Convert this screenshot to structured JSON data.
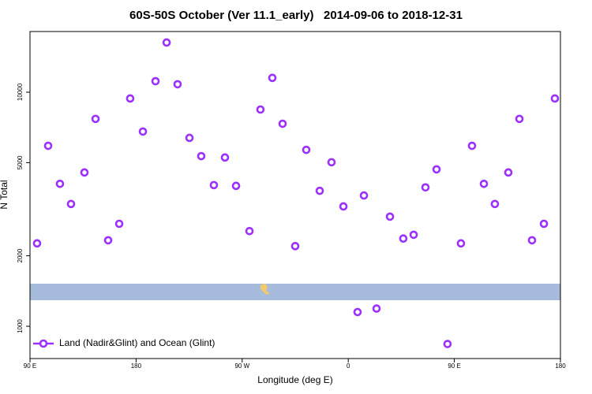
{
  "chart_data": {
    "type": "scatter",
    "title": "60S-50S October (Ver 11.1_early)   2014-09-06 to 2018-12-31",
    "x_label": "Longitude (deg E)",
    "y_label": "N Total",
    "log_y": true,
    "color": "#9b30ff",
    "legend": "bottom-left",
    "series": [
      {
        "name": "Land (Nadir&Glint) and Ocean (Glint)",
        "color": "#9b30ff",
        "x": [
          96.0,
          105.4,
          115.4,
          124.8,
          136.2,
          145.6,
          156.3,
          165.7,
          175.0,
          185.8,
          196.5,
          205.9,
          215.2,
          225.3,
          235.3,
          246.0,
          255.4,
          264.8,
          276.2,
          285.5,
          295.6,
          304.3,
          315.0,
          324.4,
          335.8,
          345.8,
          355.9,
          367.9,
          373.3,
          384.0,
          395.4,
          406.7,
          415.5,
          425.5,
          434.9,
          444.2,
          455.6,
          465.0,
          475.1,
          484.4,
          495.8,
          505.2,
          515.9,
          526.0,
          535.3
        ],
        "values": [
          2260,
          5900,
          4060,
          3330,
          4540,
          7690,
          2330,
          2740,
          9400,
          6790,
          11140,
          16300,
          10810,
          6380,
          5330,
          4010,
          5260,
          3980,
          2550,
          8430,
          11510,
          7330,
          2200,
          5670,
          3790,
          5020,
          3250,
          1150,
          3620,
          1190,
          2940,
          2370,
          2460,
          3920,
          4680,
          840,
          2260,
          5900,
          4060,
          3330,
          4540,
          7690,
          2330,
          2740,
          9400
        ]
      }
    ],
    "xlim": [
      90,
      540
    ],
    "xticks": [
      {
        "value": 90,
        "label": "90 E"
      },
      180,
      {
        "value": 270,
        "label": "90 W"
      },
      {
        "value": 360,
        "label": "0"
      },
      {
        "value": 450,
        "label": "90 E"
      },
      {
        "value": 540,
        "label": "180"
      }
    ],
    "ylim": [
      728,
      18160
    ],
    "yticks": [
      1000,
      2000,
      5000,
      10000
    ]
  }
}
